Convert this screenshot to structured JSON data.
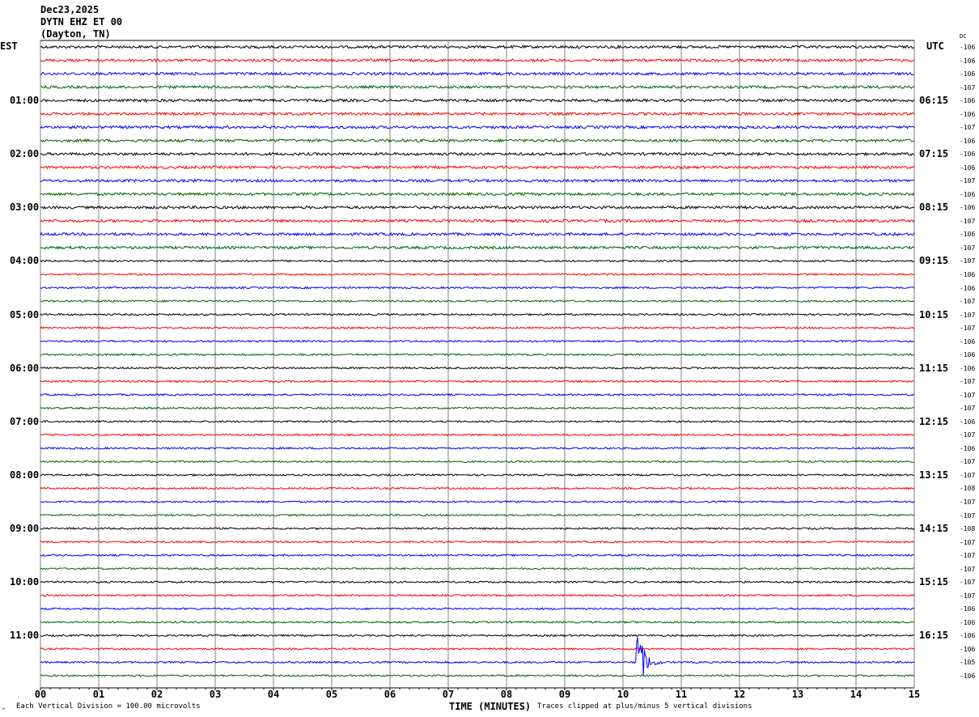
{
  "header": {
    "date": "Dec23,2025",
    "station": "DYTN EHZ ET 00",
    "location": "(Dayton, TN)"
  },
  "left_tz": "EST",
  "right_tz": "UTC",
  "dc_label": "DC",
  "footer": {
    "scale": "Each Vertical Division =  100.00 microvolts",
    "xlabel": "TIME (MINUTES)",
    "clip": "Traces clipped at plus/minus 5 vertical divisions",
    "corner": "^"
  },
  "colors": {
    "trace_cycle": [
      "#000000",
      "#ff0000",
      "#0000ff",
      "#006400"
    ],
    "grid": "#808080"
  },
  "chart_data": {
    "type": "line",
    "subtype": "helicorder",
    "xlabel": "TIME (MINUTES)",
    "xlim": [
      0,
      15
    ],
    "x_ticks": [
      "00",
      "01",
      "02",
      "03",
      "04",
      "05",
      "06",
      "07",
      "08",
      "09",
      "10",
      "11",
      "12",
      "13",
      "14",
      "15"
    ],
    "rows_per_hour": 4,
    "row_count": 48,
    "est_hour_labels": [
      {
        "row": 4,
        "label": "01:00"
      },
      {
        "row": 8,
        "label": "02:00"
      },
      {
        "row": 12,
        "label": "03:00"
      },
      {
        "row": 16,
        "label": "04:00"
      },
      {
        "row": 20,
        "label": "05:00"
      },
      {
        "row": 24,
        "label": "06:00"
      },
      {
        "row": 28,
        "label": "07:00"
      },
      {
        "row": 32,
        "label": "08:00"
      },
      {
        "row": 36,
        "label": "09:00"
      },
      {
        "row": 40,
        "label": "10:00"
      },
      {
        "row": 44,
        "label": "11:00"
      }
    ],
    "utc_hour_labels": [
      {
        "row": 4,
        "label": "06:15"
      },
      {
        "row": 8,
        "label": "07:15"
      },
      {
        "row": 12,
        "label": "08:15"
      },
      {
        "row": 16,
        "label": "09:15"
      },
      {
        "row": 20,
        "label": "10:15"
      },
      {
        "row": 24,
        "label": "11:15"
      },
      {
        "row": 28,
        "label": "12:15"
      },
      {
        "row": 32,
        "label": "13:15"
      },
      {
        "row": 36,
        "label": "14:15"
      },
      {
        "row": 40,
        "label": "15:15"
      },
      {
        "row": 44,
        "label": "16:15"
      }
    ],
    "dc_offsets": [
      -106,
      -106,
      -106,
      -107,
      -106,
      -106,
      -107,
      -106,
      -106,
      -106,
      -107,
      -106,
      -106,
      -107,
      -106,
      -107,
      -107,
      -106,
      -106,
      -107,
      -107,
      -107,
      -106,
      -106,
      -106,
      -107,
      -107,
      -107,
      -106,
      -107,
      -106,
      -107,
      -107,
      -108,
      -107,
      -107,
      -108,
      -107,
      -107,
      -107,
      -107,
      -107,
      -106,
      -106,
      -106,
      -106,
      -105,
      -106
    ],
    "events": [
      {
        "row": 46,
        "minute": 10.25,
        "amplitude_divisions": 5
      }
    ]
  }
}
